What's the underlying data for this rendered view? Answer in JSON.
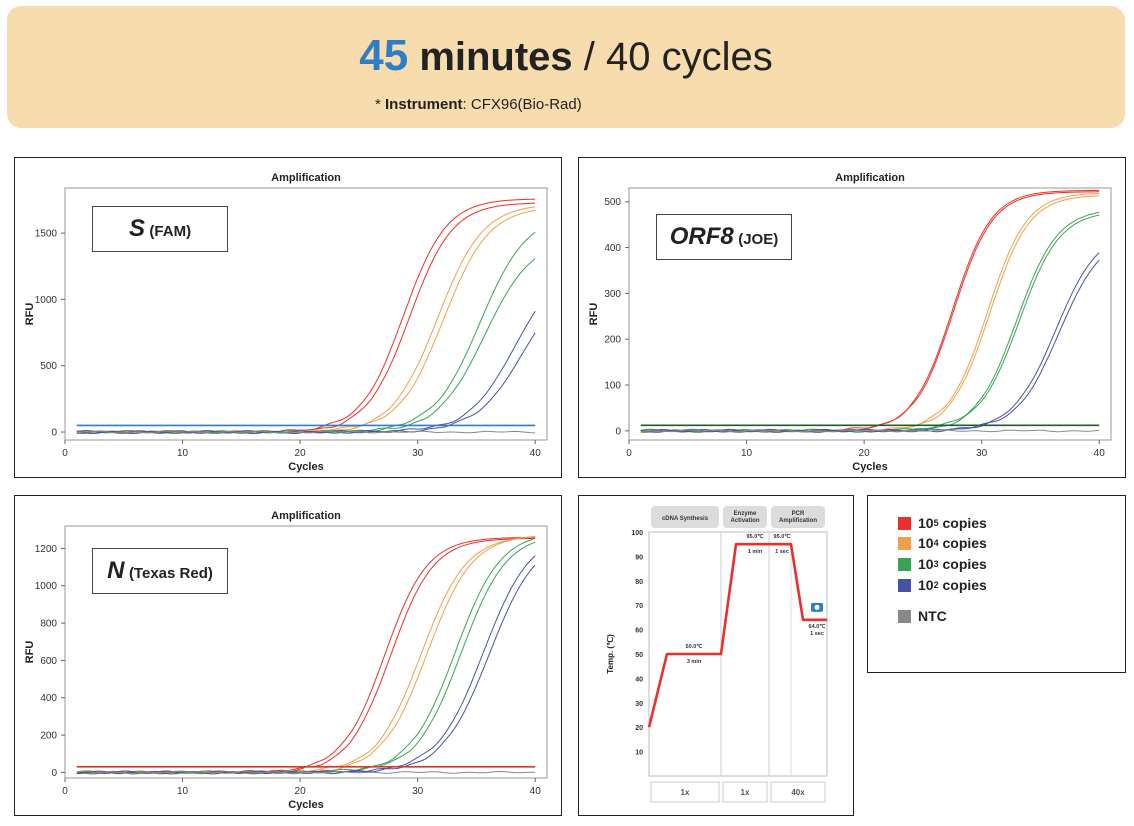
{
  "header": {
    "time_value": "45",
    "time_unit": "minutes",
    "cycles_text": "/ 40 cycles",
    "instrument_prefix": "* ",
    "instrument_label": "Instrument",
    "instrument_value": ": CFX96(Bio-Rad)"
  },
  "colors": {
    "1e5": "#e8312a",
    "1e4": "#f0a04b",
    "1e3": "#3aa356",
    "1e2": "#4653a5",
    "ntc": "#888888",
    "accent": "#2f7dc6",
    "banner": "#f7dcae"
  },
  "legend": {
    "items": [
      {
        "key": "1e5",
        "base": "10",
        "exp": "5",
        "label": "copies"
      },
      {
        "key": "1e4",
        "base": "10",
        "exp": "4",
        "label": "copies"
      },
      {
        "key": "1e3",
        "base": "10",
        "exp": "3",
        "label": "copies"
      },
      {
        "key": "1e2",
        "base": "10",
        "exp": "2",
        "label": "copies"
      },
      {
        "key": "ntc",
        "base": "NTC",
        "exp": "",
        "label": ""
      }
    ]
  },
  "chart_data": [
    {
      "id": "s-fam",
      "type": "line",
      "title": "Amplification",
      "xlabel": "Cycles",
      "ylabel": "RFU",
      "gene": "S",
      "dye": "(FAM)",
      "xlim": [
        0,
        41
      ],
      "ylim": [
        -60,
        1840
      ],
      "xticks": [
        0,
        10,
        20,
        30,
        40
      ],
      "yticks": [
        0,
        500,
        1000,
        1500
      ],
      "threshold": 50,
      "threshold_color": "#2f7dc6",
      "series": [
        {
          "key": "1e5",
          "plateau": 1760,
          "ct": 28.8,
          "k": 0.55
        },
        {
          "key": "1e5",
          "plateau": 1730,
          "ct": 29.3,
          "k": 0.55
        },
        {
          "key": "1e4",
          "plateau": 1720,
          "ct": 31.7,
          "k": 0.52
        },
        {
          "key": "1e4",
          "plateau": 1700,
          "ct": 32.2,
          "k": 0.52
        },
        {
          "key": "1e3",
          "plateau": 1650,
          "ct": 35.3,
          "k": 0.5
        },
        {
          "key": "1e3",
          "plateau": 1460,
          "ct": 35.7,
          "k": 0.5
        },
        {
          "key": "1e2",
          "plateau": 1300,
          "ct": 38.3,
          "k": 0.5
        },
        {
          "key": "1e2",
          "plateau": 1180,
          "ct": 38.9,
          "k": 0.5
        },
        {
          "key": "ntc",
          "plateau": 0,
          "ct": 0,
          "k": 0
        }
      ]
    },
    {
      "id": "orf8-joe",
      "type": "line",
      "title": "Amplification",
      "xlabel": "Cycles",
      "ylabel": "RFU",
      "gene": "ORF8",
      "dye": "(JOE)",
      "xlim": [
        0,
        41
      ],
      "ylim": [
        -20,
        530
      ],
      "xticks": [
        0,
        10,
        20,
        30,
        40
      ],
      "yticks": [
        0,
        100,
        200,
        300,
        400,
        500
      ],
      "threshold": 12,
      "threshold_color": "#1e5e2e",
      "series": [
        {
          "key": "1e5",
          "plateau": 525,
          "ct": 27.5,
          "k": 0.6
        },
        {
          "key": "1e5",
          "plateau": 522,
          "ct": 27.6,
          "k": 0.6
        },
        {
          "key": "1e4",
          "plateau": 520,
          "ct": 30.5,
          "k": 0.6
        },
        {
          "key": "1e4",
          "plateau": 515,
          "ct": 30.7,
          "k": 0.6
        },
        {
          "key": "1e3",
          "plateau": 485,
          "ct": 33.0,
          "k": 0.58
        },
        {
          "key": "1e3",
          "plateau": 480,
          "ct": 33.2,
          "k": 0.58
        },
        {
          "key": "1e2",
          "plateau": 440,
          "ct": 36.3,
          "k": 0.55
        },
        {
          "key": "1e2",
          "plateau": 430,
          "ct": 36.6,
          "k": 0.55
        },
        {
          "key": "ntc",
          "plateau": 0,
          "ct": 0,
          "k": 0
        }
      ]
    },
    {
      "id": "n-texasred",
      "type": "line",
      "title": "Amplification",
      "xlabel": "Cycles",
      "ylabel": "RFU",
      "gene": "N",
      "dye": "(Texas Red)",
      "xlim": [
        0,
        41
      ],
      "ylim": [
        -30,
        1320
      ],
      "xticks": [
        0,
        10,
        20,
        30,
        40
      ],
      "yticks": [
        0,
        200,
        400,
        600,
        800,
        1000,
        1200
      ],
      "threshold": 30,
      "threshold_color": "#e8312a",
      "series": [
        {
          "key": "1e5",
          "plateau": 1260,
          "ct": 27.2,
          "k": 0.55
        },
        {
          "key": "1e5",
          "plateau": 1255,
          "ct": 27.7,
          "k": 0.55
        },
        {
          "key": "1e4",
          "plateau": 1270,
          "ct": 30.3,
          "k": 0.52
        },
        {
          "key": "1e4",
          "plateau": 1275,
          "ct": 30.8,
          "k": 0.52
        },
        {
          "key": "1e3",
          "plateau": 1290,
          "ct": 33.2,
          "k": 0.52
        },
        {
          "key": "1e3",
          "plateau": 1280,
          "ct": 33.7,
          "k": 0.52
        },
        {
          "key": "1e2",
          "plateau": 1290,
          "ct": 35.6,
          "k": 0.5
        },
        {
          "key": "1e2",
          "plateau": 1270,
          "ct": 36.1,
          "k": 0.5
        },
        {
          "key": "ntc",
          "plateau": 0,
          "ct": 0,
          "k": 0
        }
      ]
    },
    {
      "id": "thermal-profile",
      "type": "line",
      "ylabel": "Temp. (℃)",
      "ylim": [
        0,
        100
      ],
      "yticks": [
        10,
        20,
        30,
        40,
        50,
        60,
        70,
        80,
        90,
        100
      ],
      "stages": [
        {
          "name": "cDNA Synthesis",
          "repeat": "1x"
        },
        {
          "name": "Enzyme\nActivation",
          "repeat": "1x"
        },
        {
          "name": "PCR\nAmplification",
          "repeat": "40x"
        }
      ],
      "steps": [
        {
          "temp": 50.0,
          "temp_label": "50.0℃",
          "time": "3 min"
        },
        {
          "temp": 95.0,
          "temp_label": "95.0℃",
          "time": "1 min"
        },
        {
          "temp": 95.0,
          "temp_label": "95.0℃",
          "time": "1 sec"
        },
        {
          "temp": 64.0,
          "temp_label": "64.0℃",
          "time": "1 sec",
          "camera": true
        }
      ],
      "start_temp": 20,
      "camera_icon": "camera-icon"
    }
  ]
}
